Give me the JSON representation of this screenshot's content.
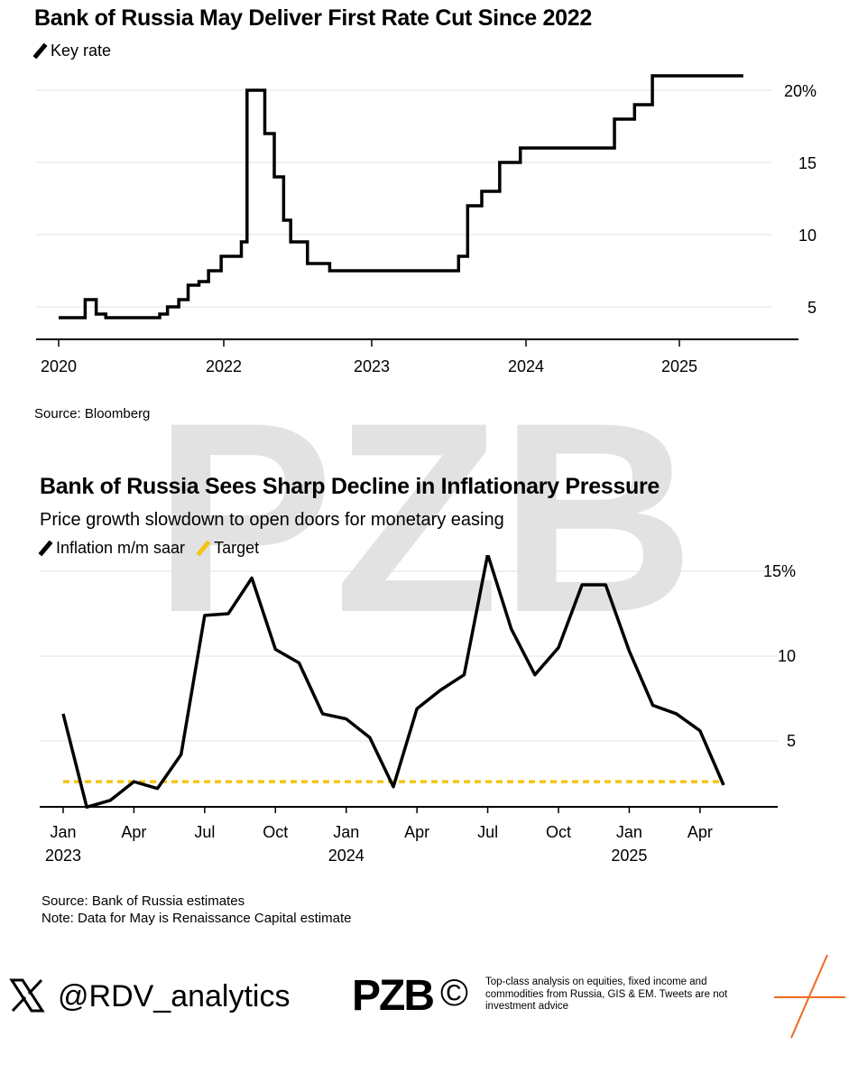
{
  "chart_data": [
    {
      "type": "line",
      "title": "Bank of Russia May Deliver First Rate Cut Since 2022",
      "legend": [
        "Key rate"
      ],
      "xlim": [
        2020,
        2025.75
      ],
      "ylim": [
        3.5,
        22
      ],
      "x_ticks": [
        2020,
        2022,
        2023,
        2024,
        2025
      ],
      "x_tick_labels": [
        "2020",
        "2022",
        "2023",
        "2024",
        "2025"
      ],
      "y_ticks": [
        5,
        10,
        15,
        20
      ],
      "y_tick_labels": [
        "5",
        "10",
        "15",
        "20%"
      ],
      "grid": true,
      "source": "Source: Bloomberg",
      "series": [
        {
          "name": "Key rate",
          "color": "#000000",
          "step": true,
          "points": [
            [
              "2020-01-01",
              4.25
            ],
            [
              "2020-04-27",
              5.5
            ],
            [
              "2020-06-15",
              4.5
            ],
            [
              "2020-07-27",
              4.25
            ],
            [
              "2021-03-22",
              4.5
            ],
            [
              "2021-04-26",
              5.0
            ],
            [
              "2021-06-15",
              5.5
            ],
            [
              "2021-07-26",
              6.5
            ],
            [
              "2021-09-13",
              6.75
            ],
            [
              "2021-10-25",
              7.5
            ],
            [
              "2021-12-20",
              8.5
            ],
            [
              "2022-02-14",
              9.5
            ],
            [
              "2022-02-28",
              20.0
            ],
            [
              "2022-04-11",
              17.0
            ],
            [
              "2022-05-04",
              14.0
            ],
            [
              "2022-05-27",
              11.0
            ],
            [
              "2022-06-14",
              9.5
            ],
            [
              "2022-07-25",
              8.0
            ],
            [
              "2022-09-19",
              7.5
            ],
            [
              "2023-07-24",
              8.5
            ],
            [
              "2023-08-15",
              12.0
            ],
            [
              "2023-09-18",
              13.0
            ],
            [
              "2023-10-30",
              15.0
            ],
            [
              "2023-12-18",
              16.0
            ],
            [
              "2024-07-29",
              18.0
            ],
            [
              "2024-09-16",
              19.0
            ],
            [
              "2024-10-28",
              21.0
            ],
            [
              "2025-06-01",
              21.0
            ]
          ]
        }
      ]
    },
    {
      "type": "line",
      "title": "Bank of Russia Sees Sharp Decline in Inflationary Pressure",
      "subtitle": "Price growth slowdown to open doors for monetary easing",
      "legend": [
        "Inflation m/m saar",
        "Target"
      ],
      "x_tick_labels": [
        "Jan\n2023",
        "Apr",
        "Jul",
        "Oct",
        "Jan\n2024",
        "Apr",
        "Jul",
        "Oct",
        "Jan\n2025",
        "Apr"
      ],
      "y_ticks": [
        5,
        10,
        15
      ],
      "y_tick_labels": [
        "5",
        "10",
        "15%"
      ],
      "ylim": [
        0,
        17
      ],
      "grid": true,
      "source": "Source: Bank of Russia estimates",
      "note": "Note: Data for May is Renaissance Capital estimate",
      "series": [
        {
          "name": "Inflation m/m saar",
          "color": "#000000",
          "x": [
            "2023-01",
            "2023-02",
            "2023-03",
            "2023-04",
            "2023-05",
            "2023-06",
            "2023-07",
            "2023-08",
            "2023-09",
            "2023-10",
            "2023-11",
            "2023-12",
            "2024-01",
            "2024-02",
            "2024-03",
            "2024-04",
            "2024-05",
            "2024-06",
            "2024-07",
            "2024-08",
            "2024-09",
            "2024-10",
            "2024-11",
            "2024-12",
            "2025-01",
            "2025-02",
            "2025-03",
            "2025-04",
            "2025-05"
          ],
          "values": [
            6.6,
            1.1,
            1.5,
            2.6,
            2.2,
            4.2,
            12.4,
            12.5,
            14.6,
            10.4,
            9.6,
            6.6,
            6.3,
            5.2,
            2.3,
            6.9,
            8.0,
            8.9,
            16.0,
            11.6,
            8.9,
            10.5,
            14.2,
            14.2,
            10.3,
            7.1,
            6.6,
            5.6,
            2.4
          ]
        },
        {
          "name": "Target",
          "color": "#F2C514",
          "dashed": true,
          "value": 2.6
        }
      ]
    }
  ],
  "watermark": {
    "text": "PZB"
  },
  "footer": {
    "handle": "@RDV_analytics",
    "logo_text": "PZB",
    "copyright_symbol": "©",
    "description": "Top-class analysis on equities, fixed income and commodities from Russia, GIS & EM. Tweets are not investment advice"
  },
  "colors": {
    "line": "#000000",
    "target": "#F2C514",
    "grid": "#e0e0e0",
    "accent": "#EE6A1E"
  },
  "icons": {
    "x_logo": "x-logo-icon",
    "corner_mark": "orange-cross-icon"
  }
}
